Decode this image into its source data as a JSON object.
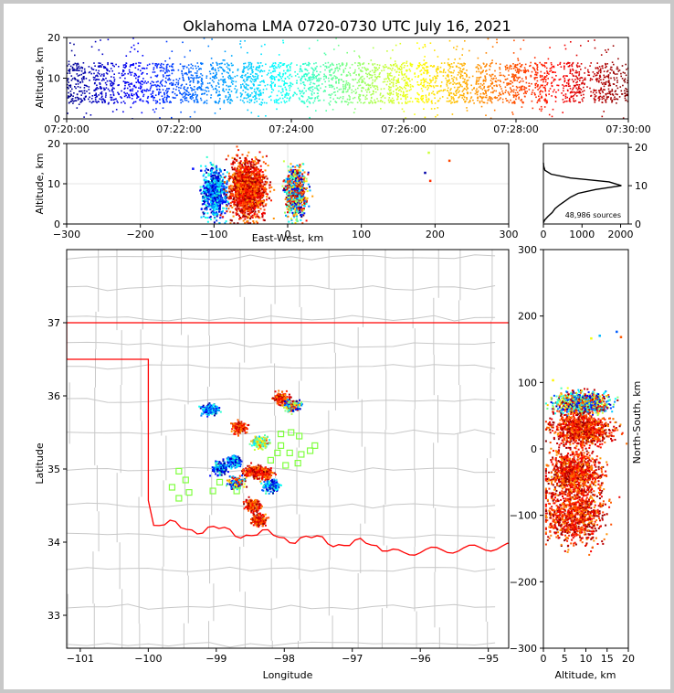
{
  "title": "Oklahoma LMA 0720-0730 UTC July 16, 2021",
  "colors": {
    "time_scale": [
      "#00008f",
      "#0000ff",
      "#0080ff",
      "#00ffff",
      "#80ff80",
      "#ffff00",
      "#ff8000",
      "#ff0000",
      "#800000"
    ],
    "state_border": "#ff0000",
    "county_lines": "#c8c8c8",
    "network_sensor": "#80ff40"
  },
  "chart_data": [
    {
      "id": "time_altitude",
      "type": "scatter",
      "xlabel": "",
      "ylabel": "Altitude, km",
      "x_ticks": [
        "07:20:00",
        "07:22:00",
        "07:24:00",
        "07:26:00",
        "07:28:00",
        "07:30:00"
      ],
      "xlim": [
        "07:20:00",
        "07:30:00"
      ],
      "y_ticks": [
        "0",
        "10",
        "20"
      ],
      "ylim": [
        0,
        20
      ],
      "altitude_core_km": [
        4,
        14
      ],
      "color_by": "time"
    },
    {
      "id": "eastwest_altitude",
      "type": "scatter",
      "xlabel": "East-West, km",
      "ylabel": "Altitude, km",
      "x_ticks": [
        "−300",
        "−200",
        "−100",
        "0",
        "100",
        "200",
        "300"
      ],
      "xlim": [
        -300,
        300
      ],
      "y_ticks": [
        "0",
        "10",
        "20"
      ],
      "ylim": [
        0,
        20
      ],
      "clusters": [
        {
          "x_center": -100,
          "x_spread": 8,
          "alt_center": 8,
          "alt_spread": 3,
          "time": "early"
        },
        {
          "x_center": -55,
          "x_spread": 12,
          "alt_center": 9,
          "alt_spread": 3.5,
          "time": "late"
        },
        {
          "x_center": 10,
          "x_spread": 7,
          "alt_center": 8,
          "alt_spread": 3,
          "time": "mixed"
        }
      ],
      "outliers": [
        [
          -130,
          14
        ],
        [
          190,
          18
        ],
        [
          185,
          13
        ],
        [
          192,
          11
        ],
        [
          218,
          16
        ]
      ]
    },
    {
      "id": "altitude_histogram",
      "type": "line",
      "xlabel": "",
      "ylabel": "",
      "x_ticks": [
        "0",
        "1000",
        "2000"
      ],
      "xlim": [
        0,
        2200
      ],
      "y_ticks": [
        "0",
        "10",
        "20"
      ],
      "ylim": [
        0,
        21
      ],
      "annotation": "48,986 sources",
      "profile": [
        [
          0,
          0.3
        ],
        [
          30,
          1
        ],
        [
          120,
          2
        ],
        [
          230,
          3
        ],
        [
          300,
          4
        ],
        [
          420,
          5
        ],
        [
          560,
          6
        ],
        [
          700,
          7
        ],
        [
          900,
          8
        ],
        [
          1350,
          9
        ],
        [
          2020,
          10
        ],
        [
          1700,
          11
        ],
        [
          700,
          12
        ],
        [
          200,
          13
        ],
        [
          40,
          14
        ],
        [
          10,
          15
        ],
        [
          0,
          16
        ]
      ]
    },
    {
      "id": "plan_view",
      "type": "scatter",
      "xlabel": "Longitude",
      "ylabel": "Latitude",
      "x_ticks": [
        "−101",
        "−100",
        "−99",
        "−98",
        "−97",
        "−96",
        "−95"
      ],
      "xlim": [
        -101.2,
        -94.7
      ],
      "y_ticks": [
        "33",
        "34",
        "35",
        "36",
        "37"
      ],
      "ylim": [
        32.55,
        38.0
      ],
      "storm_cells": [
        {
          "lon": -98.68,
          "lat": 35.58,
          "time": "late"
        },
        {
          "lon": -98.35,
          "lat": 35.38,
          "time": "mid"
        },
        {
          "lon": -98.05,
          "lat": 35.97,
          "time": "late"
        },
        {
          "lon": -97.9,
          "lat": 35.87,
          "time": "mixed"
        },
        {
          "lon": -98.75,
          "lat": 35.12,
          "time": "early"
        },
        {
          "lon": -98.95,
          "lat": 35.02,
          "time": "early"
        },
        {
          "lon": -98.48,
          "lat": 34.98,
          "time": "late"
        },
        {
          "lon": -98.3,
          "lat": 34.95,
          "time": "late"
        },
        {
          "lon": -98.2,
          "lat": 34.78,
          "time": "early"
        },
        {
          "lon": -98.72,
          "lat": 34.82,
          "time": "mixed"
        },
        {
          "lon": -98.48,
          "lat": 34.52,
          "time": "late"
        },
        {
          "lon": -98.38,
          "lat": 34.32,
          "time": "late"
        },
        {
          "lon": -99.1,
          "lat": 35.82,
          "time": "early"
        }
      ],
      "sensors": [
        [
          -99.55,
          34.97
        ],
        [
          -99.45,
          34.85
        ],
        [
          -99.65,
          34.75
        ],
        [
          -99.55,
          34.6
        ],
        [
          -99.4,
          34.68
        ],
        [
          -99.05,
          34.7
        ],
        [
          -98.95,
          34.82
        ],
        [
          -98.7,
          34.7
        ],
        [
          -97.9,
          35.5
        ],
        [
          -98.05,
          35.48
        ],
        [
          -98.05,
          35.32
        ],
        [
          -97.92,
          35.22
        ],
        [
          -98.1,
          35.22
        ],
        [
          -97.75,
          35.2
        ],
        [
          -97.62,
          35.25
        ],
        [
          -97.8,
          35.08
        ],
        [
          -97.98,
          35.05
        ],
        [
          -97.78,
          35.45
        ],
        [
          -97.55,
          35.32
        ],
        [
          -98.2,
          35.12
        ]
      ]
    },
    {
      "id": "altitude_northsouth",
      "type": "scatter",
      "xlabel": "Altitude, km",
      "ylabel": "North-South, km",
      "x_ticks": [
        "0",
        "5",
        "10",
        "15",
        "20"
      ],
      "xlim": [
        0,
        20
      ],
      "y_ticks": [
        "−300",
        "−200",
        "−100",
        "0",
        "100",
        "200",
        "300"
      ],
      "ylim": [
        -300,
        300
      ],
      "clusters": [
        {
          "ns_center": 70,
          "ns_spread": 8,
          "alt_center": 9,
          "alt_spread": 3,
          "time": "mixed"
        },
        {
          "ns_center": 30,
          "ns_spread": 12,
          "alt_center": 9,
          "alt_spread": 3.5,
          "time": "late"
        },
        {
          "ns_center": -35,
          "ns_spread": 16,
          "alt_center": 7,
          "alt_spread": 3,
          "time": "late"
        },
        {
          "ns_center": -100,
          "ns_spread": 20,
          "alt_center": 7,
          "alt_spread": 3.5,
          "time": "late"
        }
      ],
      "outliers": [
        [
          13,
          172
        ],
        [
          17,
          178
        ],
        [
          11,
          168
        ],
        [
          18,
          170
        ],
        [
          2,
          105
        ]
      ]
    }
  ]
}
